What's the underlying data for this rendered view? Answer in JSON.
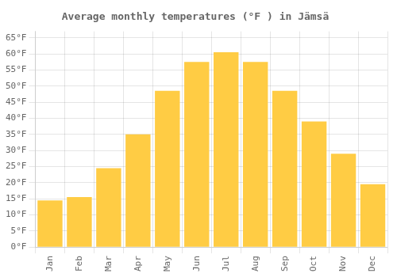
{
  "chart_data": {
    "type": "bar",
    "title": "Average monthly temperatures (°F ) in Jämsä",
    "categories": [
      "Jan",
      "Feb",
      "Mar",
      "Apr",
      "May",
      "Jun",
      "Jul",
      "Aug",
      "Sep",
      "Oct",
      "Nov",
      "Dec"
    ],
    "values": [
      14.5,
      15.5,
      24.5,
      35.0,
      48.5,
      57.5,
      60.5,
      57.5,
      48.5,
      39.0,
      29.0,
      19.5
    ],
    "color": "#FFCC44",
    "ylim": [
      0,
      67
    ],
    "yticks": [
      {
        "value": 0,
        "label": "0°F"
      },
      {
        "value": 5,
        "label": "5°F"
      },
      {
        "value": 10,
        "label": "10°F"
      },
      {
        "value": 15,
        "label": "15°F"
      },
      {
        "value": 20,
        "label": "20°F"
      },
      {
        "value": 25,
        "label": "25°F"
      },
      {
        "value": 30,
        "label": "30°F"
      },
      {
        "value": 35,
        "label": "35°F"
      },
      {
        "value": 40,
        "label": "40°F"
      },
      {
        "value": 45,
        "label": "45°F"
      },
      {
        "value": 50,
        "label": "50°F"
      },
      {
        "value": 55,
        "label": "55°F"
      },
      {
        "value": 60,
        "label": "60°F"
      },
      {
        "value": 65,
        "label": "65°F"
      }
    ],
    "grid": true
  }
}
